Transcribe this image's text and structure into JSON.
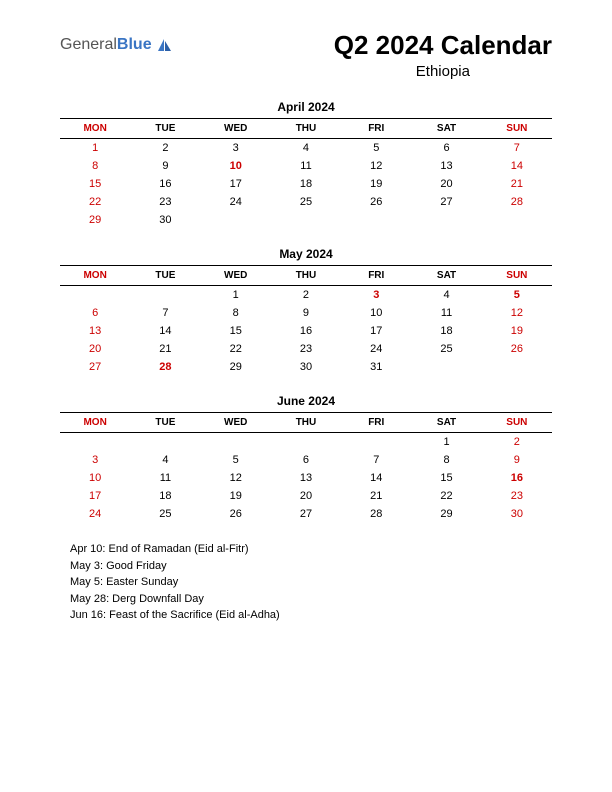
{
  "logo": {
    "text1": "General",
    "text2": "Blue"
  },
  "header": {
    "title": "Q2 2024 Calendar",
    "subtitle": "Ethiopia"
  },
  "colors": {
    "red": "#cc0000",
    "black": "#000000",
    "logo_blue": "#3a75c4",
    "logo_gray": "#555555"
  },
  "day_headers": [
    "MON",
    "TUE",
    "WED",
    "THU",
    "FRI",
    "SAT",
    "SUN"
  ],
  "header_colors": [
    "red",
    "black",
    "black",
    "black",
    "black",
    "black",
    "red"
  ],
  "months": [
    {
      "name": "April 2024",
      "weeks": [
        [
          {
            "d": "1",
            "c": "red"
          },
          {
            "d": "2",
            "c": "black"
          },
          {
            "d": "3",
            "c": "black"
          },
          {
            "d": "4",
            "c": "black"
          },
          {
            "d": "5",
            "c": "black"
          },
          {
            "d": "6",
            "c": "black"
          },
          {
            "d": "7",
            "c": "red"
          }
        ],
        [
          {
            "d": "8",
            "c": "red"
          },
          {
            "d": "9",
            "c": "black"
          },
          {
            "d": "10",
            "c": "red",
            "b": true
          },
          {
            "d": "11",
            "c": "black"
          },
          {
            "d": "12",
            "c": "black"
          },
          {
            "d": "13",
            "c": "black"
          },
          {
            "d": "14",
            "c": "red"
          }
        ],
        [
          {
            "d": "15",
            "c": "red"
          },
          {
            "d": "16",
            "c": "black"
          },
          {
            "d": "17",
            "c": "black"
          },
          {
            "d": "18",
            "c": "black"
          },
          {
            "d": "19",
            "c": "black"
          },
          {
            "d": "20",
            "c": "black"
          },
          {
            "d": "21",
            "c": "red"
          }
        ],
        [
          {
            "d": "22",
            "c": "red"
          },
          {
            "d": "23",
            "c": "black"
          },
          {
            "d": "24",
            "c": "black"
          },
          {
            "d": "25",
            "c": "black"
          },
          {
            "d": "26",
            "c": "black"
          },
          {
            "d": "27",
            "c": "black"
          },
          {
            "d": "28",
            "c": "red"
          }
        ],
        [
          {
            "d": "29",
            "c": "red"
          },
          {
            "d": "30",
            "c": "black"
          },
          {
            "d": ""
          },
          {
            "d": ""
          },
          {
            "d": ""
          },
          {
            "d": ""
          },
          {
            "d": ""
          }
        ]
      ]
    },
    {
      "name": "May 2024",
      "weeks": [
        [
          {
            "d": ""
          },
          {
            "d": ""
          },
          {
            "d": "1",
            "c": "black"
          },
          {
            "d": "2",
            "c": "black"
          },
          {
            "d": "3",
            "c": "red",
            "b": true
          },
          {
            "d": "4",
            "c": "black"
          },
          {
            "d": "5",
            "c": "red",
            "b": true
          }
        ],
        [
          {
            "d": "6",
            "c": "red"
          },
          {
            "d": "7",
            "c": "black"
          },
          {
            "d": "8",
            "c": "black"
          },
          {
            "d": "9",
            "c": "black"
          },
          {
            "d": "10",
            "c": "black"
          },
          {
            "d": "11",
            "c": "black"
          },
          {
            "d": "12",
            "c": "red"
          }
        ],
        [
          {
            "d": "13",
            "c": "red"
          },
          {
            "d": "14",
            "c": "black"
          },
          {
            "d": "15",
            "c": "black"
          },
          {
            "d": "16",
            "c": "black"
          },
          {
            "d": "17",
            "c": "black"
          },
          {
            "d": "18",
            "c": "black"
          },
          {
            "d": "19",
            "c": "red"
          }
        ],
        [
          {
            "d": "20",
            "c": "red"
          },
          {
            "d": "21",
            "c": "black"
          },
          {
            "d": "22",
            "c": "black"
          },
          {
            "d": "23",
            "c": "black"
          },
          {
            "d": "24",
            "c": "black"
          },
          {
            "d": "25",
            "c": "black"
          },
          {
            "d": "26",
            "c": "red"
          }
        ],
        [
          {
            "d": "27",
            "c": "red"
          },
          {
            "d": "28",
            "c": "red",
            "b": true
          },
          {
            "d": "29",
            "c": "black"
          },
          {
            "d": "30",
            "c": "black"
          },
          {
            "d": "31",
            "c": "black"
          },
          {
            "d": ""
          },
          {
            "d": ""
          }
        ]
      ]
    },
    {
      "name": "June 2024",
      "weeks": [
        [
          {
            "d": ""
          },
          {
            "d": ""
          },
          {
            "d": ""
          },
          {
            "d": ""
          },
          {
            "d": ""
          },
          {
            "d": "1",
            "c": "black"
          },
          {
            "d": "2",
            "c": "red"
          }
        ],
        [
          {
            "d": "3",
            "c": "red"
          },
          {
            "d": "4",
            "c": "black"
          },
          {
            "d": "5",
            "c": "black"
          },
          {
            "d": "6",
            "c": "black"
          },
          {
            "d": "7",
            "c": "black"
          },
          {
            "d": "8",
            "c": "black"
          },
          {
            "d": "9",
            "c": "red"
          }
        ],
        [
          {
            "d": "10",
            "c": "red"
          },
          {
            "d": "11",
            "c": "black"
          },
          {
            "d": "12",
            "c": "black"
          },
          {
            "d": "13",
            "c": "black"
          },
          {
            "d": "14",
            "c": "black"
          },
          {
            "d": "15",
            "c": "black"
          },
          {
            "d": "16",
            "c": "red",
            "b": true
          }
        ],
        [
          {
            "d": "17",
            "c": "red"
          },
          {
            "d": "18",
            "c": "black"
          },
          {
            "d": "19",
            "c": "black"
          },
          {
            "d": "20",
            "c": "black"
          },
          {
            "d": "21",
            "c": "black"
          },
          {
            "d": "22",
            "c": "black"
          },
          {
            "d": "23",
            "c": "red"
          }
        ],
        [
          {
            "d": "24",
            "c": "red"
          },
          {
            "d": "25",
            "c": "black"
          },
          {
            "d": "26",
            "c": "black"
          },
          {
            "d": "27",
            "c": "black"
          },
          {
            "d": "28",
            "c": "black"
          },
          {
            "d": "29",
            "c": "black"
          },
          {
            "d": "30",
            "c": "red"
          }
        ]
      ]
    }
  ],
  "holidays": [
    "Apr 10: End of Ramadan (Eid al-Fitr)",
    "May 3: Good Friday",
    "May 5: Easter Sunday",
    "May 28: Derg Downfall Day",
    "Jun 16: Feast of the Sacrifice (Eid al-Adha)"
  ]
}
